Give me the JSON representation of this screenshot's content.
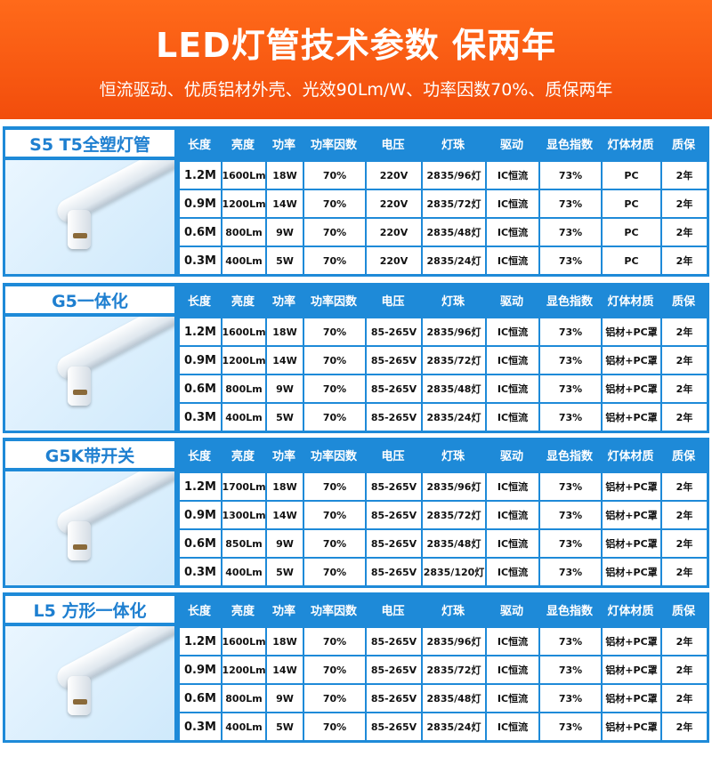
{
  "header": {
    "title": "LED灯管技术参数  保两年",
    "subtitle": "恒流驱动、优质铝材外壳、光效90Lm/W、功率因数70%、质保两年"
  },
  "sections": [
    {
      "name": "S5 T5全塑灯管",
      "columns": [
        "长度",
        "亮度",
        "功率",
        "功率因数",
        "电压",
        "灯珠",
        "驱动",
        "显色指数",
        "灯体材质",
        "质保"
      ],
      "rows": [
        [
          "1.2M",
          "1600Lm",
          "18W",
          "70%",
          "220V",
          "2835/96灯",
          "IC恒流",
          "73%",
          "PC",
          "2年"
        ],
        [
          "0.9M",
          "1200Lm",
          "14W",
          "70%",
          "220V",
          "2835/72灯",
          "IC恒流",
          "73%",
          "PC",
          "2年"
        ],
        [
          "0.6M",
          "800Lm",
          "9W",
          "70%",
          "220V",
          "2835/48灯",
          "IC恒流",
          "73%",
          "PC",
          "2年"
        ],
        [
          "0.3M",
          "400Lm",
          "5W",
          "70%",
          "220V",
          "2835/24灯",
          "IC恒流",
          "73%",
          "PC",
          "2年"
        ]
      ]
    },
    {
      "name": "G5一体化",
      "columns": [
        "长度",
        "亮度",
        "功率",
        "功率因数",
        "电压",
        "灯珠",
        "驱动",
        "显色指数",
        "灯体材质",
        "质保"
      ],
      "rows": [
        [
          "1.2M",
          "1600Lm",
          "18W",
          "70%",
          "85-265V",
          "2835/96灯",
          "IC恒流",
          "73%",
          "铝材+PC罩",
          "2年"
        ],
        [
          "0.9M",
          "1200Lm",
          "14W",
          "70%",
          "85-265V",
          "2835/72灯",
          "IC恒流",
          "73%",
          "铝材+PC罩",
          "2年"
        ],
        [
          "0.6M",
          "800Lm",
          "9W",
          "70%",
          "85-265V",
          "2835/48灯",
          "IC恒流",
          "73%",
          "铝材+PC罩",
          "2年"
        ],
        [
          "0.3M",
          "400Lm",
          "5W",
          "70%",
          "85-265V",
          "2835/24灯",
          "IC恒流",
          "73%",
          "铝材+PC罩",
          "2年"
        ]
      ]
    },
    {
      "name": "G5K带开关",
      "columns": [
        "长度",
        "亮度",
        "功率",
        "功率因数",
        "电压",
        "灯珠",
        "驱动",
        "显色指数",
        "灯体材质",
        "质保"
      ],
      "rows": [
        [
          "1.2M",
          "1700Lm",
          "18W",
          "70%",
          "85-265V",
          "2835/96灯",
          "IC恒流",
          "73%",
          "铝材+PC罩",
          "2年"
        ],
        [
          "0.9M",
          "1300Lm",
          "14W",
          "70%",
          "85-265V",
          "2835/72灯",
          "IC恒流",
          "73%",
          "铝材+PC罩",
          "2年"
        ],
        [
          "0.6M",
          "850Lm",
          "9W",
          "70%",
          "85-265V",
          "2835/48灯",
          "IC恒流",
          "73%",
          "铝材+PC罩",
          "2年"
        ],
        [
          "0.3M",
          "400Lm",
          "5W",
          "70%",
          "85-265V",
          "2835/120灯",
          "IC恒流",
          "73%",
          "铝材+PC罩",
          "2年"
        ]
      ]
    },
    {
      "name": "L5 方形一体化",
      "columns": [
        "长度",
        "亮度",
        "功率",
        "功率因数",
        "电压",
        "灯珠",
        "驱动",
        "显色指数",
        "灯体材质",
        "质保"
      ],
      "rows": [
        [
          "1.2M",
          "1600Lm",
          "18W",
          "70%",
          "85-265V",
          "2835/96灯",
          "IC恒流",
          "73%",
          "铝材+PC罩",
          "2年"
        ],
        [
          "0.9M",
          "1200Lm",
          "14W",
          "70%",
          "85-265V",
          "2835/72灯",
          "IC恒流",
          "73%",
          "铝材+PC罩",
          "2年"
        ],
        [
          "0.6M",
          "800Lm",
          "9W",
          "70%",
          "85-265V",
          "2835/48灯",
          "IC恒流",
          "73%",
          "铝材+PC罩",
          "2年"
        ],
        [
          "0.3M",
          "400Lm",
          "5W",
          "70%",
          "85-265V",
          "2835/24灯",
          "IC恒流",
          "73%",
          "铝材+PC罩",
          "2年"
        ]
      ]
    }
  ]
}
